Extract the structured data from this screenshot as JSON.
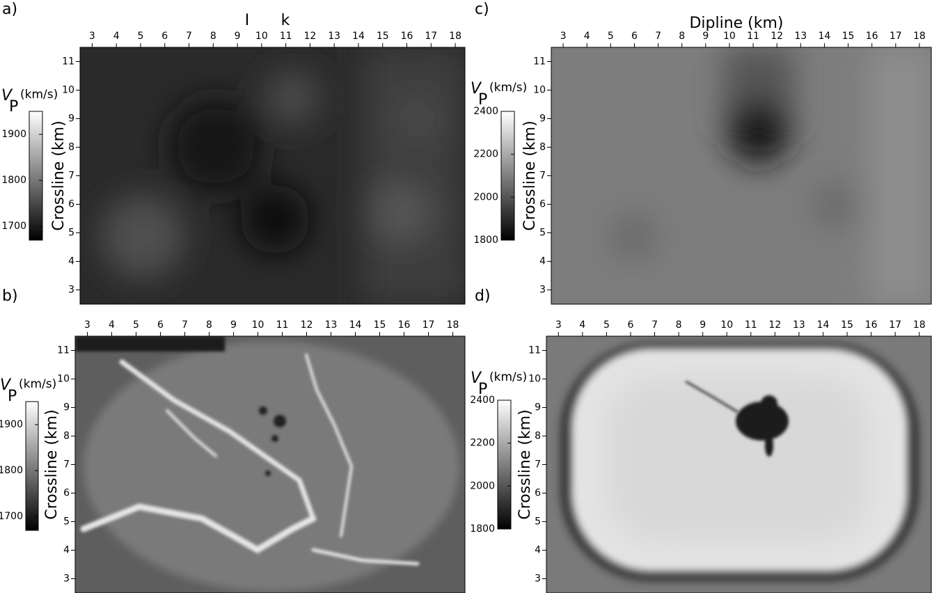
{
  "chart_data": [
    {
      "type": "heatmap",
      "panel_label": "a)",
      "annotations": [
        "I",
        "k"
      ],
      "y_label": "Crossline (km)",
      "xlim": [
        2.5,
        18.4
      ],
      "ylim": [
        11.5,
        2.5
      ],
      "xticks": [
        3,
        4,
        5,
        6,
        7,
        8,
        9,
        10,
        11,
        12,
        13,
        14,
        15,
        16,
        17,
        18
      ],
      "yticks": [
        3,
        4,
        5,
        6,
        7,
        8,
        9,
        10,
        11
      ],
      "colorbar": {
        "label": "V",
        "label_subscript": "P",
        "label_unit": "(km/s)",
        "clim": [
          1670,
          1950
        ],
        "ticks": [
          1700,
          1800,
          1900
        ]
      }
    },
    {
      "type": "heatmap",
      "panel_label": "b)",
      "y_label": "Crossline (km)",
      "xlim": [
        2.5,
        18.5
      ],
      "ylim": [
        11.5,
        2.5
      ],
      "xticks": [
        3,
        4,
        5,
        6,
        7,
        8,
        9,
        10,
        11,
        12,
        13,
        14,
        15,
        16,
        17,
        18
      ],
      "yticks": [
        3,
        4,
        5,
        6,
        7,
        8,
        9,
        10,
        11
      ],
      "colorbar": {
        "label": "V",
        "label_subscript": "P",
        "label_unit": "(km/s)",
        "clim": [
          1670,
          1950
        ],
        "ticks": [
          1700,
          1800,
          1900
        ]
      }
    },
    {
      "type": "heatmap",
      "panel_label": "c)",
      "x_label": "Dipline (km)",
      "y_label": "Crossline (km)",
      "xlim": [
        2.5,
        18.5
      ],
      "ylim": [
        11.5,
        2.5
      ],
      "xticks": [
        3,
        4,
        5,
        6,
        7,
        8,
        9,
        10,
        11,
        12,
        13,
        14,
        15,
        16,
        17,
        18
      ],
      "yticks": [
        3,
        4,
        5,
        6,
        7,
        8,
        9,
        10,
        11
      ],
      "colorbar": {
        "label": "V",
        "label_subscript": "P",
        "label_unit": "(km/s)",
        "clim": [
          1800,
          2400
        ],
        "ticks": [
          1800,
          2000,
          2200,
          2400
        ]
      }
    },
    {
      "type": "heatmap",
      "panel_label": "d)",
      "y_label": "Crossline (km)",
      "xlim": [
        2.5,
        18.5
      ],
      "ylim": [
        11.5,
        2.5
      ],
      "xticks": [
        3,
        4,
        5,
        6,
        7,
        8,
        9,
        10,
        11,
        12,
        13,
        14,
        15,
        16,
        17,
        18
      ],
      "yticks": [
        3,
        4,
        5,
        6,
        7,
        8,
        9,
        10,
        11
      ],
      "colorbar": {
        "label": "V",
        "label_subscript": "P",
        "label_unit": "(km/s)",
        "clim": [
          1800,
          2400
        ],
        "ticks": [
          1800,
          2000,
          2200,
          2400
        ]
      }
    }
  ]
}
